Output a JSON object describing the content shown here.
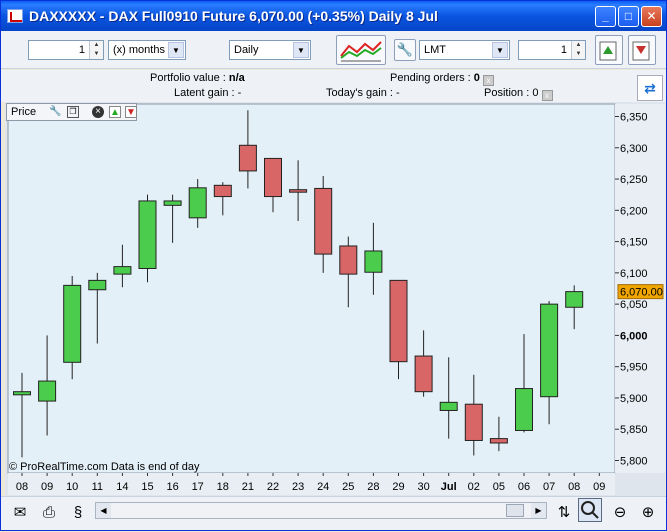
{
  "window": {
    "title": "DAXXXXX - DAX Full0910 Future     6,070.00 (+0.35%)    Daily  8 Jul",
    "buttons": {
      "minimize": "_",
      "maximize": "□",
      "close": "✕"
    }
  },
  "toolbar": {
    "period_count": "1",
    "period_unit": "(x) months",
    "interval": "Daily",
    "order_type": "LMT",
    "quantity": "1",
    "icons": [
      "indicators-icon",
      "wrench-icon",
      "buy-icon",
      "sell-icon"
    ]
  },
  "info": {
    "portfolio_label": "Portfolio value :",
    "portfolio_value": "n/a",
    "pending_label": "Pending orders :",
    "pending_value": "0",
    "latent_label": "Latent gain :",
    "latent_value": "-",
    "today_label": "Today's gain :",
    "today_value": "-",
    "position_label": "Position :",
    "position_value": "0"
  },
  "price_panel": {
    "label": "Price",
    "icons": [
      "wrench-icon",
      "window-icon",
      "close-icon",
      "up-icon",
      "down-icon"
    ]
  },
  "copyright": "© ProRealTime.com  Data is end of day",
  "colors": {
    "up": "#4ccc4c",
    "down": "#d96666",
    "background": "#dfe5ec",
    "price_tag": "#f0a500"
  },
  "chart_data": {
    "type": "candlestick",
    "current_price_label": "6,070.00",
    "current_price": 6070,
    "ylim": [
      5780,
      6370
    ],
    "yticks": [
      5800,
      5850,
      5900,
      5950,
      6000,
      6050,
      6100,
      6150,
      6200,
      6250,
      6300,
      6350
    ],
    "ytick_labels": [
      "5,800",
      "5,850",
      "5,900",
      "5,950",
      "6,000",
      "6,050",
      "6,100",
      "6,150",
      "6,200",
      "6,250",
      "6,300",
      "6,350"
    ],
    "bold_tick": "6,000",
    "x_labels": [
      "08",
      "09",
      "10",
      "11",
      "14",
      "15",
      "16",
      "17",
      "18",
      "21",
      "22",
      "23",
      "24",
      "25",
      "28",
      "29",
      "30",
      "Jul",
      "02",
      "05",
      "06",
      "07",
      "08",
      "09"
    ],
    "candles": [
      {
        "o": 5905,
        "h": 5940,
        "l": 5805,
        "c": 5910
      },
      {
        "o": 5895,
        "h": 6000,
        "l": 5840,
        "c": 5927
      },
      {
        "o": 5957,
        "h": 6095,
        "l": 5930,
        "c": 6080
      },
      {
        "o": 6073,
        "h": 6100,
        "l": 5987,
        "c": 6088
      },
      {
        "o": 6098,
        "h": 6145,
        "l": 6077,
        "c": 6110
      },
      {
        "o": 6107,
        "h": 6225,
        "l": 6085,
        "c": 6215
      },
      {
        "o": 6208,
        "h": 6225,
        "l": 6148,
        "c": 6215
      },
      {
        "o": 6188,
        "h": 6250,
        "l": 6172,
        "c": 6236
      },
      {
        "o": 6240,
        "h": 6245,
        "l": 6192,
        "c": 6222
      },
      {
        "o": 6304,
        "h": 6360,
        "l": 6235,
        "c": 6263
      },
      {
        "o": 6283,
        "h": 6283,
        "l": 6197,
        "c": 6222
      },
      {
        "o": 6233,
        "h": 6280,
        "l": 6183,
        "c": 6229
      },
      {
        "o": 6235,
        "h": 6255,
        "l": 6100,
        "c": 6130
      },
      {
        "o": 6143,
        "h": 6158,
        "l": 6045,
        "c": 6098
      },
      {
        "o": 6101,
        "h": 6180,
        "l": 6065,
        "c": 6135
      },
      {
        "o": 6088,
        "h": 6088,
        "l": 5930,
        "c": 5958
      },
      {
        "o": 5967,
        "h": 6008,
        "l": 5902,
        "c": 5910
      },
      {
        "o": 5880,
        "h": 5965,
        "l": 5835,
        "c": 5893
      },
      {
        "o": 5890,
        "h": 5937,
        "l": 5808,
        "c": 5832
      },
      {
        "o": 5835,
        "h": 5870,
        "l": 5815,
        "c": 5828
      },
      {
        "o": 5848,
        "h": 6002,
        "l": 5845,
        "c": 5915
      },
      {
        "o": 5902,
        "h": 6055,
        "l": 5858,
        "c": 6050
      },
      {
        "o": 6045,
        "h": 6080,
        "l": 6010,
        "c": 6070
      }
    ]
  },
  "statusbar": {
    "icons": [
      "mail-icon",
      "print-icon",
      "scale-icon",
      "scroll-left-icon",
      "scroll-right-icon",
      "watchlist-icon",
      "zoom-select-icon",
      "zoom-out-icon",
      "zoom-in-icon"
    ]
  }
}
